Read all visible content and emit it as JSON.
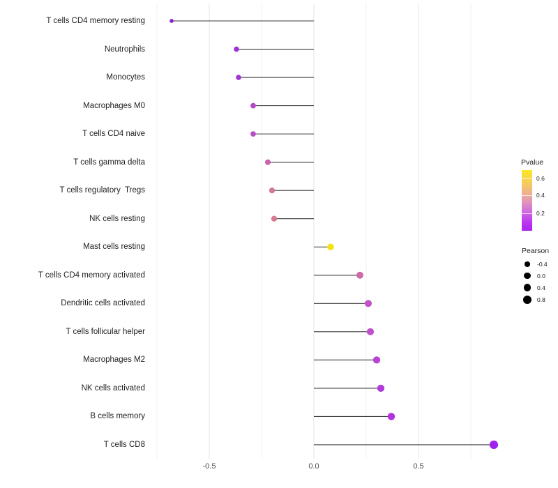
{
  "chart_data": {
    "type": "lollipop",
    "orientation": "horizontal",
    "title": "",
    "xlabel": "",
    "ylabel": "",
    "xlim": [
      -0.77,
      0.92
    ],
    "grid": "on",
    "x_axis": {
      "ticks": [
        {
          "value": -0.5,
          "label": "-0.5"
        },
        {
          "value": 0.0,
          "label": "0.0"
        },
        {
          "value": 0.5,
          "label": "0.5"
        }
      ],
      "minor_gridlines": [
        -0.75,
        -0.25,
        0.25,
        0.75
      ]
    },
    "categories": [
      "T cells CD4 memory resting",
      "Neutrophils",
      "Monocytes",
      "Macrophages M0",
      "T cells CD4 naive",
      "T cells gamma delta",
      "T cells regulatory  Tregs",
      "NK cells resting",
      "Mast cells resting",
      "T cells CD4 memory activated",
      "Dendritic cells activated",
      "T cells follicular helper",
      "Macrophages M2",
      "NK cells activated",
      "B cells memory",
      "T cells CD8"
    ],
    "series": [
      {
        "name": "Pearson correlation vs Pvalue",
        "points": [
          {
            "category": "T cells CD4 memory resting",
            "pearson": -0.68,
            "pvalue_approx": 0.02,
            "color": "#8a1fd0"
          },
          {
            "category": "Neutrophils",
            "pearson": -0.37,
            "pvalue_approx": 0.09,
            "color": "#9d2fd8"
          },
          {
            "category": "Monocytes",
            "pearson": -0.36,
            "pvalue_approx": 0.1,
            "color": "#a135d4"
          },
          {
            "category": "Macrophages M0",
            "pearson": -0.29,
            "pvalue_approx": 0.17,
            "color": "#b348c8"
          },
          {
            "category": "T cells CD4 naive",
            "pearson": -0.29,
            "pvalue_approx": 0.18,
            "color": "#b44fc4"
          },
          {
            "category": "T cells gamma delta",
            "pearson": -0.22,
            "pvalue_approx": 0.28,
            "color": "#c763ae"
          },
          {
            "category": "T cells regulatory  Tregs",
            "pearson": -0.2,
            "pvalue_approx": 0.33,
            "color": "#d1779a"
          },
          {
            "category": "NK cells resting",
            "pearson": -0.19,
            "pvalue_approx": 0.34,
            "color": "#d57a92"
          },
          {
            "category": "Mast cells resting",
            "pearson": 0.08,
            "pvalue_approx": 0.66,
            "color": "#f2e40e"
          },
          {
            "category": "T cells CD4 memory activated",
            "pearson": 0.22,
            "pvalue_approx": 0.31,
            "color": "#cc6ba6"
          },
          {
            "category": "Dendritic cells activated",
            "pearson": 0.26,
            "pvalue_approx": 0.24,
            "color": "#c054c6"
          },
          {
            "category": "T cells follicular helper",
            "pearson": 0.27,
            "pvalue_approx": 0.23,
            "color": "#c04fcc"
          },
          {
            "category": "Macrophages M2",
            "pearson": 0.3,
            "pvalue_approx": 0.19,
            "color": "#bb43d2"
          },
          {
            "category": "NK cells activated",
            "pearson": 0.32,
            "pvalue_approx": 0.14,
            "color": "#b23ad8"
          },
          {
            "category": "B cells memory",
            "pearson": 0.37,
            "pvalue_approx": 0.1,
            "color": "#b332e0"
          },
          {
            "category": "T cells CD8",
            "pearson": 0.86,
            "pvalue_approx": 0.01,
            "color": "#a021ee"
          }
        ]
      }
    ],
    "legend_pvalue": {
      "title": "Pvalue",
      "ticks": [
        "0.6",
        "0.4",
        "0.2"
      ],
      "range": [
        0.02,
        0.68
      ],
      "top_color": "#fbe723",
      "bottom_color": "#ab24f0",
      "position": "right"
    },
    "legend_pearson": {
      "title": "Pearson",
      "items": [
        {
          "label": "-0.4",
          "value": -0.4
        },
        {
          "label": "0.0",
          "value": 0.0
        },
        {
          "label": "0.4",
          "value": 0.4
        },
        {
          "label": "0.8",
          "value": 0.8
        }
      ],
      "position": "right"
    },
    "style": {
      "stem_color": "#3a3a3a",
      "major_gridline_color": "#e4e4e4",
      "minor_gridline_color": "#f1f1f1",
      "background": "#ffffff"
    }
  }
}
